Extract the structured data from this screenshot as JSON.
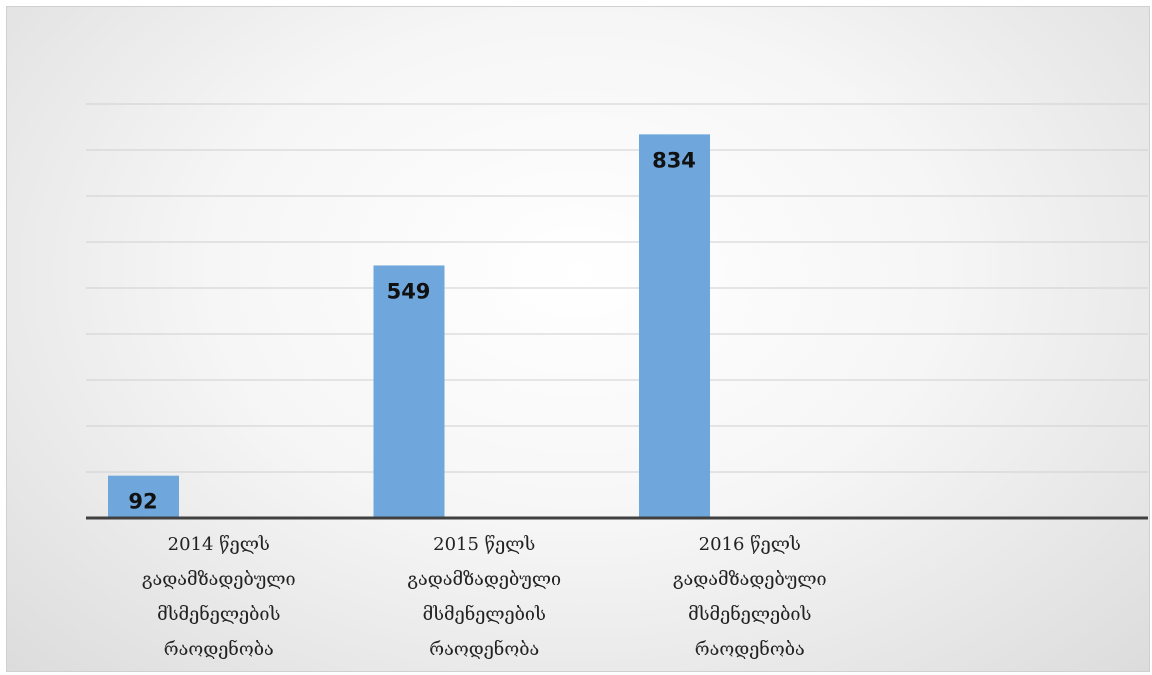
{
  "chart_data": {
    "type": "bar",
    "categories": [
      "2014 წელს გადამზადებული მსმენელების რაოდენობა",
      "2015 წელს გადამზადებული მსმენელების რაოდენობა",
      "2016 წელს გადამზადებული მსმენელების რაოდენობა",
      null
    ],
    "values": [
      92,
      549,
      834,
      null
    ],
    "color": "#6fa6db",
    "ylim": [
      0,
      900
    ],
    "yticks": [
      0,
      100,
      200,
      300,
      400,
      500,
      600,
      700,
      800,
      900
    ],
    "grid": true
  }
}
